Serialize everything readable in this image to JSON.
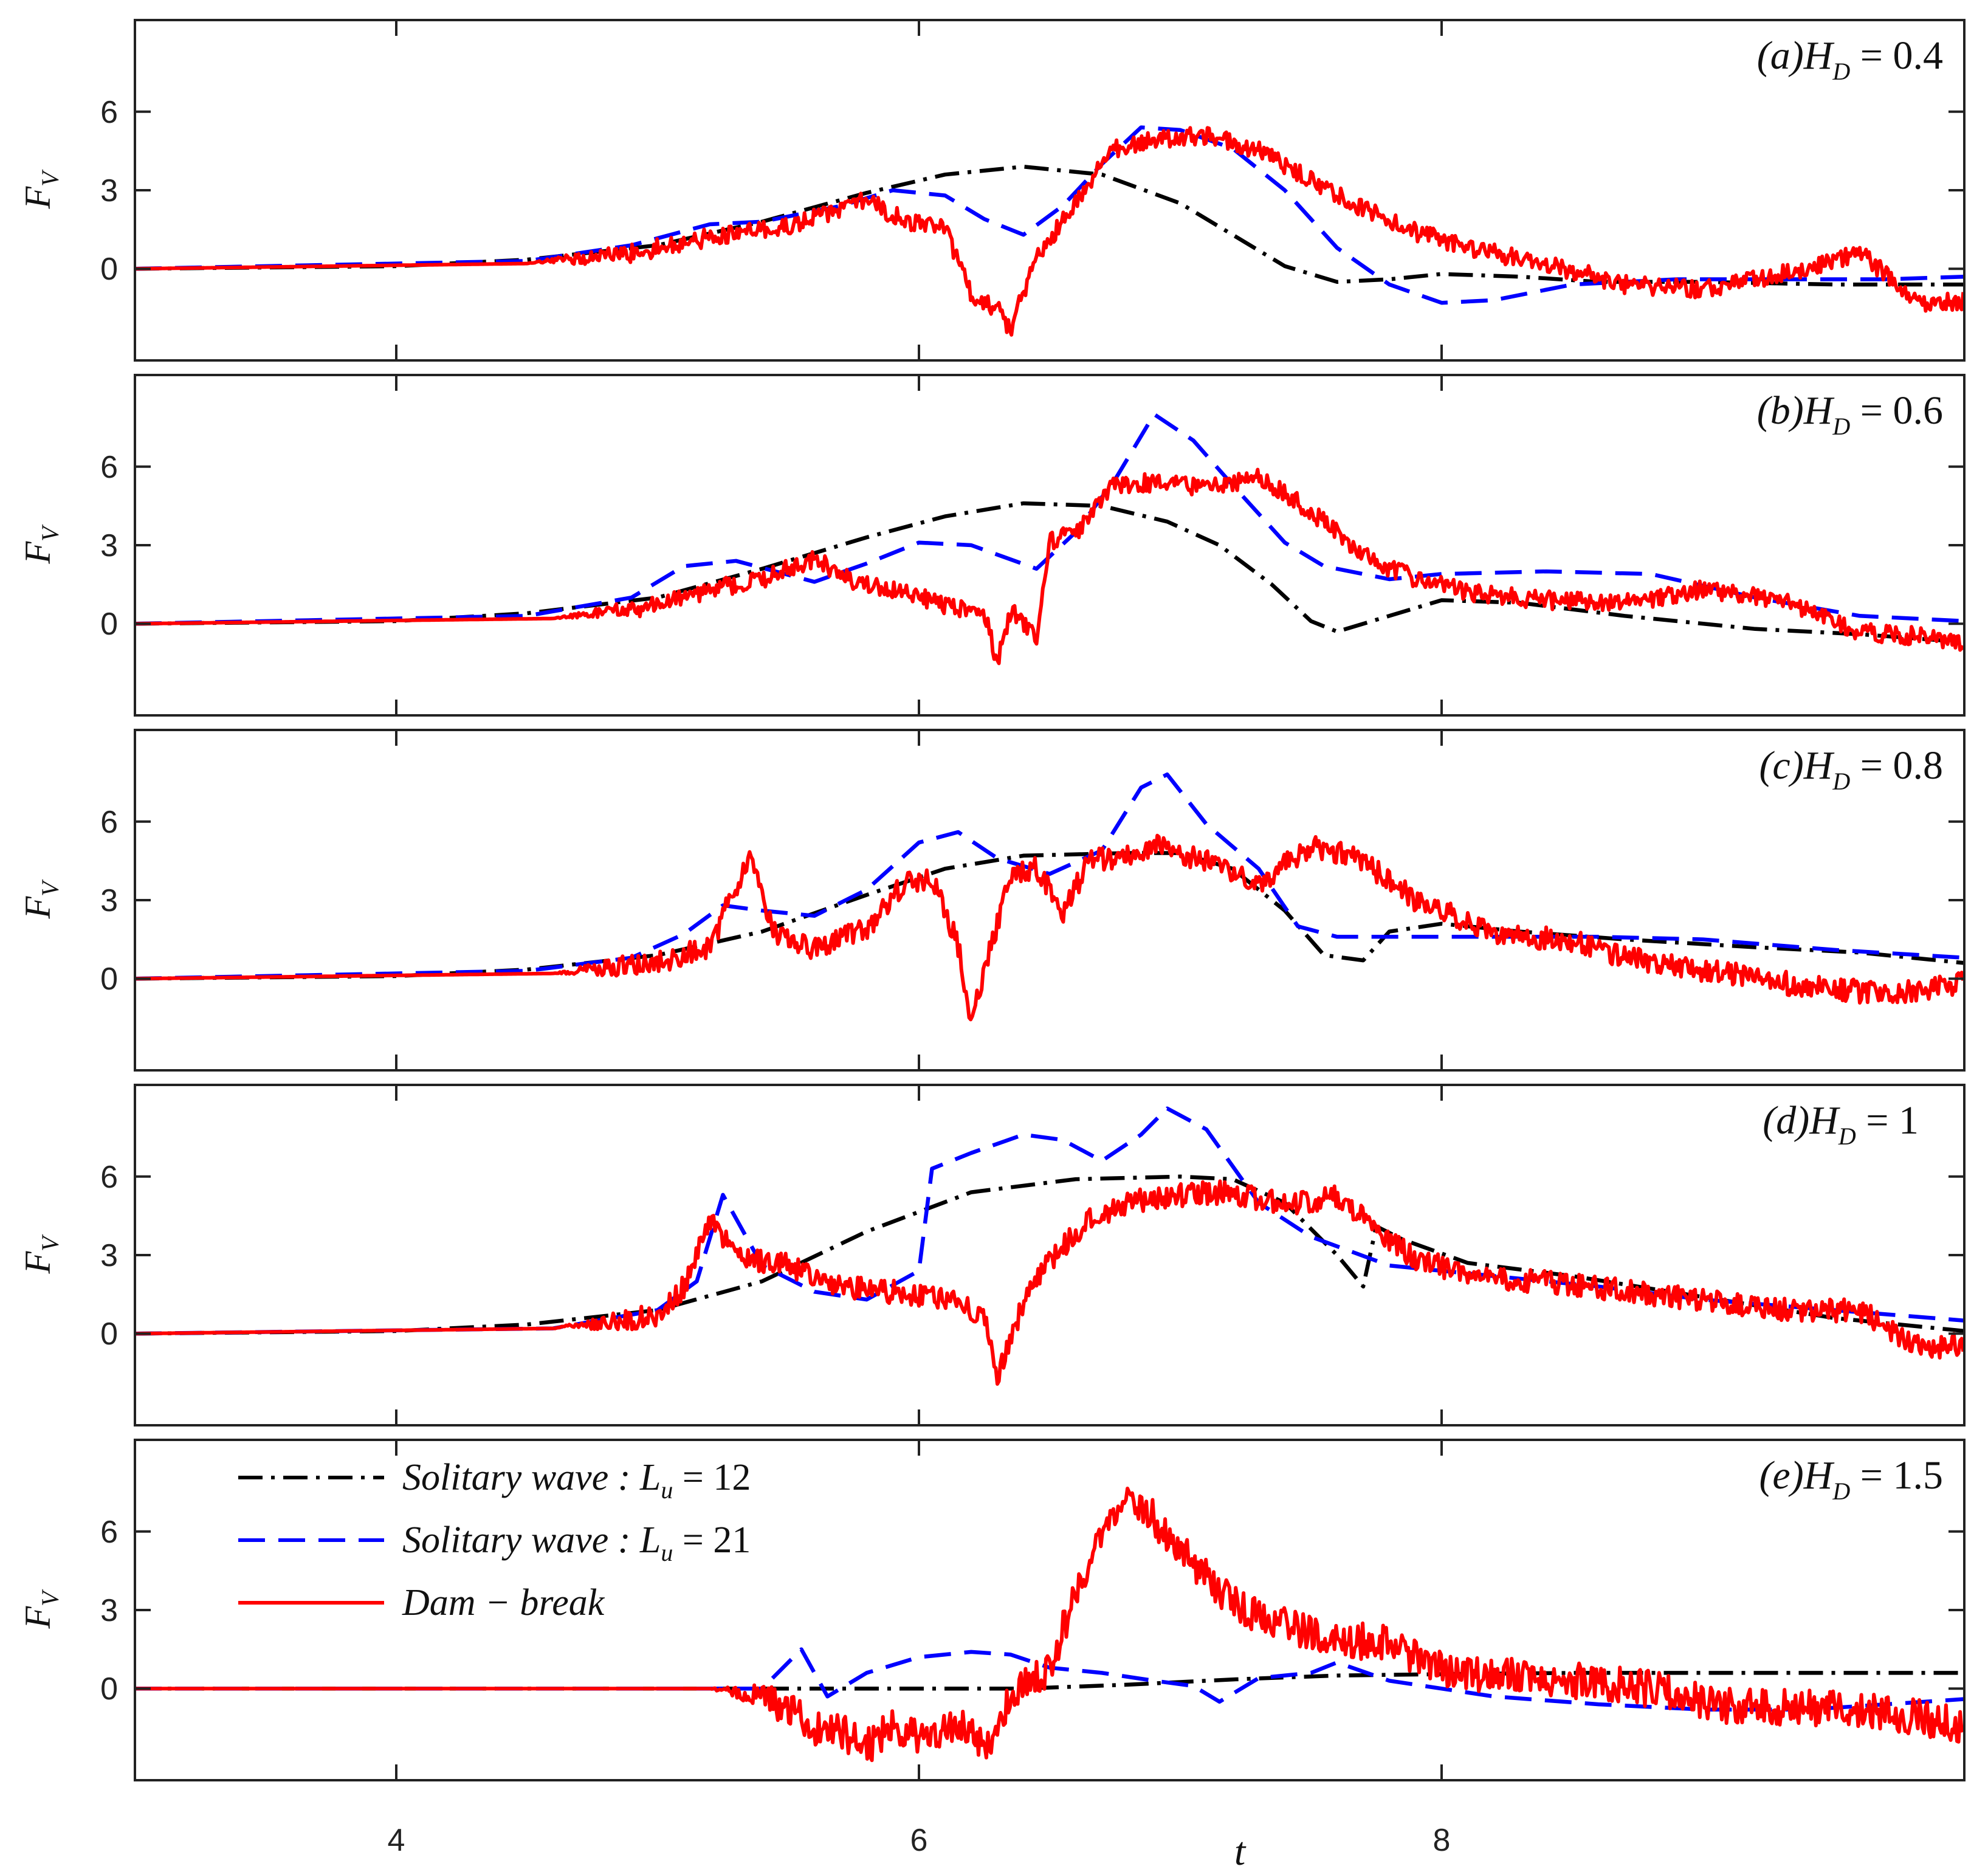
{
  "figure": {
    "xlabel": "t",
    "ylabel_main": "F",
    "ylabel_sub": "V",
    "x_ticks": [
      "4",
      "6",
      "8"
    ],
    "y_ticks": [
      "0",
      "3",
      "6"
    ]
  },
  "legend": {
    "entries": [
      {
        "label": "Solitary wave :  ",
        "param": "L",
        "sub": "u",
        "eq": " = 12",
        "color": "#000000",
        "dash": "dashdot"
      },
      {
        "label": "Solitary wave :  ",
        "param": "L",
        "sub": "u",
        "eq": " = 21",
        "color": "#0000ff",
        "dash": "dashed"
      },
      {
        "label": "Dam − break",
        "param": "",
        "sub": "",
        "eq": "",
        "color": "#ff0000",
        "dash": "solid"
      }
    ]
  },
  "chart_data": [
    {
      "type": "line",
      "panel": "(a)",
      "title_prefix": "(a)H",
      "title_sub": "D",
      "title_eq": " = 0.4",
      "xlabel": "t",
      "ylabel": "F_V",
      "xlim": [
        3,
        10
      ],
      "ylim": [
        -3.5,
        9.5
      ],
      "x_ticks": [
        4,
        6,
        8
      ],
      "y_ticks": [
        0,
        3,
        6
      ],
      "series": [
        {
          "name": "Solitary wave : L_u = 12",
          "color": "#000000",
          "dash": "dashdot",
          "x": [
            3.0,
            4.0,
            4.5,
            5.0,
            5.4,
            5.8,
            6.1,
            6.4,
            6.7,
            7.0,
            7.2,
            7.4,
            7.6,
            7.8,
            8.0,
            8.3,
            8.6,
            9.0,
            9.5,
            10.0
          ],
          "y": [
            0.0,
            0.1,
            0.35,
            0.9,
            1.8,
            2.9,
            3.6,
            3.9,
            3.6,
            2.5,
            1.3,
            0.1,
            -0.5,
            -0.4,
            -0.2,
            -0.3,
            -0.5,
            -0.5,
            -0.6,
            -0.6
          ]
        },
        {
          "name": "Solitary wave : L_u = 21",
          "color": "#0000ff",
          "dash": "dashed",
          "x": [
            3.0,
            4.5,
            4.9,
            5.2,
            5.4,
            5.7,
            5.9,
            6.1,
            6.25,
            6.4,
            6.55,
            6.7,
            6.85,
            7.0,
            7.2,
            7.4,
            7.6,
            7.8,
            8.0,
            8.2,
            8.5,
            8.9,
            9.3,
            9.7,
            10.0
          ],
          "y": [
            0.0,
            0.3,
            0.9,
            1.7,
            1.8,
            2.4,
            3.0,
            2.8,
            1.9,
            1.3,
            2.4,
            4.0,
            5.4,
            5.3,
            4.6,
            3.0,
            0.8,
            -0.6,
            -1.3,
            -1.2,
            -0.6,
            -0.4,
            -0.4,
            -0.4,
            -0.3
          ]
        },
        {
          "name": "Dam − break",
          "color": "#ff0000",
          "dash": "solid",
          "noise": 0.35,
          "x": [
            3.0,
            4.5,
            4.9,
            5.2,
            5.5,
            5.7,
            5.8,
            5.95,
            6.1,
            6.2,
            6.3,
            6.35,
            6.45,
            6.6,
            6.75,
            6.9,
            7.1,
            7.3,
            7.5,
            7.7,
            7.9,
            8.1,
            8.4,
            8.7,
            9.0,
            9.3,
            9.6,
            9.85,
            10.0
          ],
          "y": [
            0.0,
            0.2,
            0.6,
            1.2,
            1.6,
            2.3,
            2.6,
            1.8,
            1.5,
            -1.0,
            -1.5,
            -2.3,
            0.4,
            2.6,
            4.6,
            4.9,
            5.1,
            4.5,
            3.4,
            2.3,
            1.4,
            0.8,
            0.2,
            -0.6,
            -0.8,
            -0.2,
            0.6,
            -1.4,
            -1.2
          ]
        }
      ]
    },
    {
      "type": "line",
      "panel": "(b)",
      "title_prefix": "(b)H",
      "title_sub": "D",
      "title_eq": " = 0.6",
      "xlabel": "t",
      "ylabel": "F_V",
      "xlim": [
        3,
        10
      ],
      "ylim": [
        -3.5,
        9.5
      ],
      "x_ticks": [
        4,
        6,
        8
      ],
      "y_ticks": [
        0,
        3,
        6
      ],
      "series": [
        {
          "name": "Solitary wave : L_u = 12",
          "color": "#000000",
          "dash": "dashdot",
          "x": [
            3.0,
            4.0,
            4.5,
            5.0,
            5.4,
            5.8,
            6.1,
            6.4,
            6.7,
            6.95,
            7.15,
            7.35,
            7.5,
            7.6,
            7.8,
            8.0,
            8.3,
            8.7,
            9.2,
            9.6,
            10.0
          ],
          "y": [
            0.0,
            0.1,
            0.4,
            1.0,
            2.1,
            3.3,
            4.1,
            4.6,
            4.5,
            3.9,
            3.0,
            1.5,
            0.1,
            -0.3,
            0.3,
            0.9,
            0.8,
            0.3,
            -0.2,
            -0.4,
            -0.7
          ]
        },
        {
          "name": "Solitary wave : L_u = 21",
          "color": "#0000ff",
          "dash": "dashed",
          "x": [
            3.0,
            4.5,
            4.9,
            5.1,
            5.3,
            5.6,
            5.8,
            6.0,
            6.2,
            6.45,
            6.6,
            6.75,
            6.9,
            7.05,
            7.2,
            7.4,
            7.55,
            7.8,
            8.0,
            8.4,
            8.8,
            9.2,
            9.6,
            10.0
          ],
          "y": [
            0.0,
            0.3,
            1.0,
            2.2,
            2.4,
            1.6,
            2.3,
            3.1,
            3.0,
            2.1,
            3.5,
            5.5,
            8.0,
            7.0,
            5.3,
            3.1,
            2.2,
            1.7,
            1.9,
            2.0,
            1.9,
            1.0,
            0.3,
            0.1
          ]
        },
        {
          "name": "Dam − break",
          "color": "#ff0000",
          "dash": "solid",
          "noise": 0.35,
          "x": [
            3.0,
            4.6,
            5.0,
            5.2,
            5.4,
            5.6,
            5.75,
            5.95,
            6.1,
            6.25,
            6.3,
            6.35,
            6.45,
            6.5,
            6.6,
            6.75,
            6.9,
            7.1,
            7.3,
            7.5,
            7.7,
            7.9,
            8.1,
            8.4,
            8.7,
            9.0,
            9.3,
            9.6,
            9.85,
            10.0
          ],
          "y": [
            0.0,
            0.2,
            0.7,
            1.3,
            1.7,
            2.5,
            1.6,
            1.2,
            0.7,
            0.4,
            -1.5,
            0.5,
            -0.5,
            3.1,
            3.5,
            5.3,
            5.4,
            5.2,
            5.6,
            4.3,
            2.6,
            1.7,
            1.2,
            0.9,
            0.8,
            1.3,
            0.9,
            -0.3,
            -0.5,
            -0.8
          ]
        }
      ]
    },
    {
      "type": "line",
      "panel": "(c)",
      "title_prefix": "(c)H",
      "title_sub": "D",
      "title_eq": " = 0.8",
      "xlabel": "t",
      "ylabel": "F_V",
      "xlim": [
        3,
        10
      ],
      "ylim": [
        -3.5,
        9.5
      ],
      "x_ticks": [
        4,
        6,
        8
      ],
      "y_ticks": [
        0,
        3,
        6
      ],
      "series": [
        {
          "name": "Solitary wave : L_u = 12",
          "color": "#000000",
          "dash": "dashdot",
          "x": [
            3.0,
            4.0,
            4.5,
            5.0,
            5.4,
            5.8,
            6.1,
            6.4,
            6.8,
            7.0,
            7.2,
            7.4,
            7.55,
            7.7,
            7.8,
            8.0,
            8.3,
            8.7,
            9.2,
            9.6,
            10.0
          ],
          "y": [
            0.0,
            0.1,
            0.35,
            0.9,
            1.8,
            3.2,
            4.2,
            4.7,
            4.8,
            4.8,
            4.2,
            2.6,
            0.9,
            0.7,
            1.8,
            2.1,
            1.8,
            1.5,
            1.2,
            1.0,
            0.6
          ]
        },
        {
          "name": "Solitary wave : L_u = 21",
          "color": "#0000ff",
          "dash": "dashed",
          "x": [
            3.0,
            4.5,
            4.9,
            5.1,
            5.25,
            5.4,
            5.6,
            5.8,
            6.0,
            6.15,
            6.3,
            6.5,
            6.7,
            6.85,
            6.95,
            7.1,
            7.3,
            7.45,
            7.6,
            7.8,
            8.2,
            8.6,
            9.0,
            9.5,
            10.0
          ],
          "y": [
            0.0,
            0.3,
            0.8,
            1.7,
            2.8,
            2.6,
            2.4,
            3.4,
            5.2,
            5.6,
            4.6,
            4.0,
            4.9,
            7.3,
            7.8,
            5.9,
            4.2,
            2.0,
            1.6,
            1.6,
            1.6,
            1.6,
            1.5,
            1.1,
            0.8
          ]
        },
        {
          "name": "Dam − break",
          "color": "#ff0000",
          "dash": "solid",
          "noise": 0.45,
          "x": [
            3.0,
            4.6,
            5.0,
            5.2,
            5.35,
            5.45,
            5.6,
            5.8,
            5.95,
            6.05,
            6.15,
            6.2,
            6.35,
            6.45,
            6.55,
            6.65,
            6.75,
            6.9,
            7.1,
            7.3,
            7.5,
            7.7,
            7.9,
            8.2,
            8.5,
            8.8,
            9.1,
            9.4,
            9.7,
            10.0
          ],
          "y": [
            0.0,
            0.2,
            0.6,
            1.2,
            4.7,
            1.8,
            1.1,
            1.9,
            3.7,
            3.9,
            1.3,
            -1.5,
            3.9,
            4.2,
            2.5,
            4.5,
            4.6,
            5.1,
            4.5,
            3.6,
            5.1,
            4.5,
            3.0,
            1.8,
            1.4,
            0.6,
            0.2,
            -0.3,
            -0.6,
            -0.2
          ]
        }
      ]
    },
    {
      "type": "line",
      "panel": "(d)",
      "title_prefix": "(d)H",
      "title_sub": "D",
      "title_eq": " = 1",
      "xlabel": "t",
      "ylabel": "F_V",
      "xlim": [
        3,
        10
      ],
      "ylim": [
        -3.5,
        9.5
      ],
      "x_ticks": [
        4,
        6,
        8
      ],
      "y_ticks": [
        0,
        3,
        6
      ],
      "series": [
        {
          "name": "Solitary wave : L_u = 12",
          "color": "#000000",
          "dash": "dashdot",
          "x": [
            3.0,
            4.0,
            4.5,
            5.0,
            5.4,
            5.8,
            6.2,
            6.6,
            7.0,
            7.2,
            7.4,
            7.6,
            7.7,
            7.75,
            7.85,
            8.1,
            8.5,
            9.0,
            9.5,
            10.0
          ],
          "y": [
            0.0,
            0.1,
            0.35,
            0.9,
            2.0,
            3.9,
            5.4,
            5.9,
            6.0,
            5.9,
            5.0,
            3.0,
            1.8,
            4.1,
            3.6,
            2.7,
            2.2,
            1.4,
            0.6,
            0.1
          ]
        },
        {
          "name": "Solitary wave : L_u = 21",
          "color": "#0000ff",
          "dash": "dashed",
          "x": [
            3.0,
            4.6,
            5.0,
            5.15,
            5.25,
            5.4,
            5.6,
            5.8,
            6.0,
            6.05,
            6.2,
            6.4,
            6.55,
            6.7,
            6.85,
            6.95,
            7.1,
            7.3,
            7.5,
            7.8,
            8.2,
            8.6,
            9.0,
            9.5,
            10.0
          ],
          "y": [
            0.0,
            0.2,
            0.9,
            2.0,
            5.3,
            2.6,
            1.6,
            1.3,
            2.4,
            6.3,
            6.9,
            7.6,
            7.4,
            6.6,
            7.6,
            8.6,
            7.8,
            5.0,
            3.7,
            2.6,
            2.2,
            1.8,
            1.3,
            0.9,
            0.5
          ]
        },
        {
          "name": "Dam − break",
          "color": "#ff0000",
          "dash": "solid",
          "noise": 0.45,
          "x": [
            3.0,
            4.6,
            5.0,
            5.1,
            5.2,
            5.3,
            5.5,
            5.7,
            5.9,
            6.1,
            6.25,
            6.3,
            6.4,
            6.5,
            6.65,
            6.8,
            7.0,
            7.2,
            7.4,
            7.6,
            7.7,
            7.9,
            8.2,
            8.5,
            8.9,
            9.3,
            9.6,
            9.85,
            10.0
          ],
          "y": [
            0.0,
            0.2,
            0.7,
            1.8,
            4.3,
            3.0,
            2.6,
            1.8,
            1.6,
            1.4,
            0.6,
            -1.6,
            1.2,
            2.8,
            4.4,
            5.0,
            5.3,
            5.4,
            4.9,
            5.2,
            4.4,
            2.8,
            2.1,
            1.9,
            1.4,
            0.9,
            0.9,
            -0.7,
            -0.3
          ]
        }
      ]
    },
    {
      "type": "line",
      "panel": "(e)",
      "title_prefix": "(e)H",
      "title_sub": "D",
      "title_eq": " = 1.5",
      "xlabel": "t",
      "ylabel": "F_V",
      "xlim": [
        3,
        10
      ],
      "ylim": [
        -3.5,
        9.5
      ],
      "x_ticks": [
        4,
        6,
        8
      ],
      "y_ticks": [
        0,
        3,
        6
      ],
      "series": [
        {
          "name": "Solitary wave : L_u = 12",
          "color": "#000000",
          "dash": "dashdot",
          "x": [
            3.0,
            5.0,
            5.6,
            6.0,
            6.4,
            6.8,
            7.2,
            7.6,
            8.0,
            8.5,
            9.0,
            9.5,
            10.0
          ],
          "y": [
            0.0,
            0.0,
            0.0,
            0.0,
            0.0,
            0.15,
            0.35,
            0.5,
            0.55,
            0.6,
            0.6,
            0.6,
            0.6
          ]
        },
        {
          "name": "Solitary wave : L_u = 21",
          "color": "#0000ff",
          "dash": "dashed",
          "x": [
            3.0,
            5.0,
            5.4,
            5.55,
            5.65,
            5.8,
            6.0,
            6.2,
            6.35,
            6.5,
            6.7,
            6.9,
            7.05,
            7.15,
            7.3,
            7.5,
            7.6,
            7.8,
            8.2,
            8.6,
            9.0,
            9.4,
            9.7,
            10.0
          ],
          "y": [
            0.0,
            0.0,
            0.0,
            1.5,
            -0.3,
            0.6,
            1.2,
            1.4,
            1.3,
            0.8,
            0.6,
            0.3,
            0.1,
            -0.5,
            0.4,
            0.6,
            1.0,
            0.3,
            -0.3,
            -0.6,
            -0.8,
            -0.8,
            -0.6,
            -0.4
          ]
        },
        {
          "name": "Dam − break",
          "color": "#ff0000",
          "dash": "solid",
          "noise": 0.7,
          "x": [
            3.0,
            5.2,
            5.4,
            5.5,
            5.6,
            5.7,
            5.8,
            5.9,
            6.0,
            6.1,
            6.2,
            6.25,
            6.35,
            6.5,
            6.6,
            6.7,
            6.8,
            6.9,
            7.0,
            7.2,
            7.4,
            7.6,
            7.8,
            8.0,
            8.2,
            8.5,
            8.8,
            9.1,
            9.4,
            9.7,
            10.0
          ],
          "y": [
            0.0,
            0.0,
            -0.3,
            -0.8,
            -1.6,
            -1.6,
            -2.2,
            -1.4,
            -1.9,
            -1.5,
            -1.6,
            -2.5,
            -0.3,
            0.8,
            3.7,
            5.8,
            7.0,
            6.5,
            5.3,
            3.2,
            2.4,
            1.8,
            1.8,
            0.7,
            0.5,
            0.3,
            0.0,
            -0.7,
            -0.7,
            -0.9,
            -1.4
          ]
        }
      ]
    }
  ]
}
